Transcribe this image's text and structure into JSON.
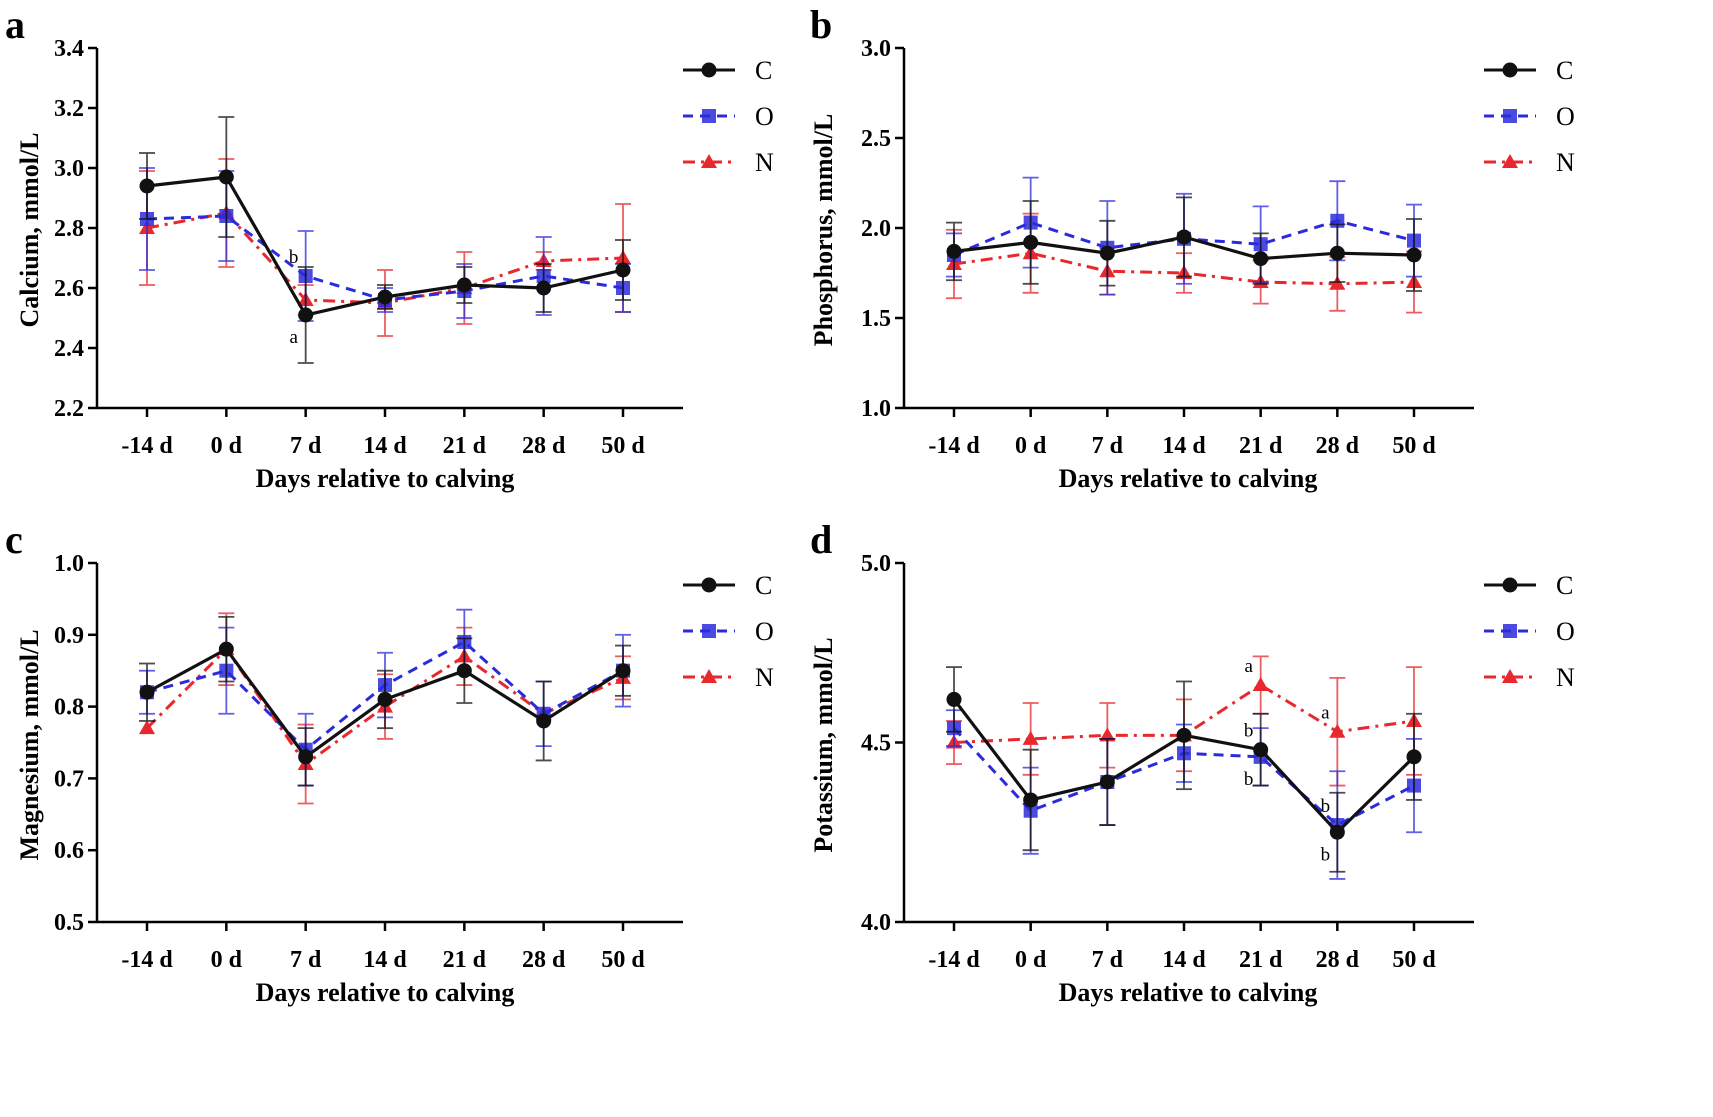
{
  "figure": {
    "series_styles": [
      {
        "name": "C",
        "color": "#111111",
        "marker": "circle",
        "dash": "solid"
      },
      {
        "name": "O",
        "color": "#2b2bdc",
        "marker": "square",
        "dash": "dashed"
      },
      {
        "name": "N",
        "color": "#e8282d",
        "marker": "triangle",
        "dash": "dashdot"
      }
    ]
  },
  "chart_data": [
    {
      "panel": "a",
      "type": "line",
      "title": "",
      "xlabel": "Days relative to calving",
      "ylabel": "Calcium, mmol/L",
      "categories": [
        "-14 d",
        "0 d",
        "7 d",
        "14 d",
        "21 d",
        "28 d",
        "50 d"
      ],
      "ylim": [
        2.2,
        3.4
      ],
      "yticks": [
        "2.2",
        "2.4",
        "2.6",
        "2.8",
        "3.0",
        "3.2",
        "3.4"
      ],
      "legend": [
        "C",
        "O",
        "N"
      ],
      "series": [
        {
          "name": "C",
          "values": [
            2.94,
            2.97,
            2.51,
            2.57,
            2.61,
            2.6,
            2.66
          ],
          "errors": [
            0.11,
            0.2,
            0.16,
            0.04,
            0.06,
            0.08,
            0.1
          ]
        },
        {
          "name": "O",
          "values": [
            2.83,
            2.84,
            2.64,
            2.56,
            2.59,
            2.64,
            2.6
          ],
          "errors": [
            0.17,
            0.15,
            0.15,
            0.04,
            0.09,
            0.13,
            0.08
          ]
        },
        {
          "name": "N",
          "values": [
            2.8,
            2.85,
            2.56,
            2.55,
            2.6,
            2.69,
            2.7
          ],
          "errors": [
            0.19,
            0.18,
            0.05,
            0.11,
            0.12,
            0.03,
            0.18
          ]
        }
      ],
      "annotations": [
        {
          "text": "b",
          "category": "7 d",
          "series": "O",
          "placement": "above"
        },
        {
          "text": "a",
          "category": "7 d",
          "series": "C",
          "placement": "below"
        }
      ]
    },
    {
      "panel": "b",
      "type": "line",
      "title": "",
      "xlabel": "Days relative to calving",
      "ylabel": "Phosphorus, mmol/L",
      "categories": [
        "-14 d",
        "0 d",
        "7 d",
        "14 d",
        "21 d",
        "28 d",
        "50 d"
      ],
      "ylim": [
        1.0,
        3.0
      ],
      "yticks": [
        "1.0",
        "1.5",
        "2.0",
        "2.5",
        "3.0"
      ],
      "legend": [
        "C",
        "O",
        "N"
      ],
      "series": [
        {
          "name": "C",
          "values": [
            1.87,
            1.92,
            1.86,
            1.95,
            1.83,
            1.86,
            1.85
          ],
          "errors": [
            0.16,
            0.23,
            0.18,
            0.22,
            0.14,
            0.16,
            0.2
          ]
        },
        {
          "name": "O",
          "values": [
            1.85,
            2.03,
            1.89,
            1.94,
            1.91,
            2.04,
            1.93
          ],
          "errors": [
            0.12,
            0.25,
            0.26,
            0.25,
            0.21,
            0.22,
            0.2
          ]
        },
        {
          "name": "N",
          "values": [
            1.8,
            1.86,
            1.76,
            1.75,
            1.7,
            1.69,
            1.7
          ],
          "errors": [
            0.19,
            0.22,
            0.13,
            0.11,
            0.12,
            0.15,
            0.17
          ]
        }
      ],
      "annotations": []
    },
    {
      "panel": "c",
      "type": "line",
      "title": "",
      "xlabel": "Days relative to calving",
      "ylabel": "Magnesium, mmol/L",
      "categories": [
        "-14 d",
        "0 d",
        "7 d",
        "14 d",
        "21 d",
        "28 d",
        "50 d"
      ],
      "ylim": [
        0.5,
        1.0
      ],
      "yticks": [
        "0.5",
        "0.6",
        "0.7",
        "0.8",
        "0.9",
        "1.0"
      ],
      "legend": [
        "C",
        "O",
        "N"
      ],
      "series": [
        {
          "name": "C",
          "values": [
            0.82,
            0.88,
            0.73,
            0.81,
            0.85,
            0.78,
            0.85
          ],
          "errors": [
            0.04,
            0.045,
            0.04,
            0.04,
            0.045,
            0.055,
            0.035
          ]
        },
        {
          "name": "O",
          "values": [
            0.82,
            0.85,
            0.74,
            0.83,
            0.89,
            0.79,
            0.85
          ],
          "errors": [
            0.03,
            0.06,
            0.05,
            0.045,
            0.045,
            0.045,
            0.05
          ]
        },
        {
          "name": "N",
          "values": [
            0.77,
            0.88,
            0.72,
            0.8,
            0.87,
            0.79,
            0.84
          ],
          "errors": [
            0.0,
            0.05,
            0.055,
            0.045,
            0.04,
            0.0,
            0.03
          ]
        }
      ],
      "annotations": []
    },
    {
      "panel": "d",
      "type": "line",
      "title": "",
      "xlabel": "Days relative to calving",
      "ylabel": "Potassium, mmol/L",
      "categories": [
        "-14 d",
        "0 d",
        "7 d",
        "14 d",
        "21 d",
        "28 d",
        "50 d"
      ],
      "ylim": [
        4.0,
        5.0
      ],
      "yticks": [
        "4.0",
        "4.5",
        "5.0"
      ],
      "legend": [
        "C",
        "O",
        "N"
      ],
      "series": [
        {
          "name": "C",
          "values": [
            4.62,
            4.34,
            4.39,
            4.52,
            4.48,
            4.25,
            4.46
          ],
          "errors": [
            0.09,
            0.14,
            0.12,
            0.15,
            0.1,
            0.11,
            0.12
          ]
        },
        {
          "name": "O",
          "values": [
            4.54,
            4.31,
            4.39,
            4.47,
            4.46,
            4.27,
            4.38
          ],
          "errors": [
            0.05,
            0.12,
            0.12,
            0.08,
            0.08,
            0.15,
            0.13
          ]
        },
        {
          "name": "N",
          "values": [
            4.5,
            4.51,
            4.52,
            4.52,
            4.66,
            4.53,
            4.56
          ],
          "errors": [
            0.06,
            0.1,
            0.09,
            0.1,
            0.08,
            0.15,
            0.15
          ]
        }
      ],
      "annotations": [
        {
          "text": "a",
          "category": "21 d",
          "series": "N",
          "placement": "above"
        },
        {
          "text": "b",
          "category": "21 d",
          "series": "C",
          "placement": "above"
        },
        {
          "text": "b",
          "category": "21 d",
          "series": "O",
          "placement": "below"
        },
        {
          "text": "a",
          "category": "28 d",
          "series": "N",
          "placement": "above"
        },
        {
          "text": "b",
          "category": "28 d",
          "series": "O",
          "placement": "above"
        },
        {
          "text": "b",
          "category": "28 d",
          "series": "C",
          "placement": "below"
        }
      ]
    }
  ]
}
